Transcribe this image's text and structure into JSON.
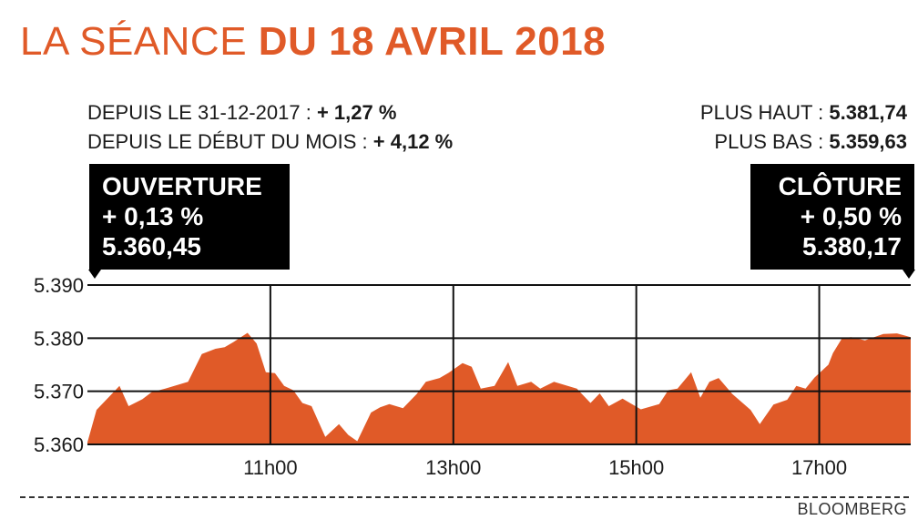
{
  "title": {
    "light": "LA SÉANCE",
    "bold": "DU 18 AVRIL 2018"
  },
  "stats_left": [
    {
      "label": "DEPUIS LE 31-12-2017 :",
      "value": "+ 1,27 %"
    },
    {
      "label": "DEPUIS LE DÉBUT DU MOIS :",
      "value": "+ 4,12 %"
    }
  ],
  "stats_right": [
    {
      "label": "PLUS HAUT :",
      "value": "5.381,74"
    },
    {
      "label": "PLUS BAS :",
      "value": "5.359,63"
    }
  ],
  "callouts": {
    "open": {
      "label": "OUVERTURE",
      "change": "+ 0,13 %",
      "value": "5.360,45"
    },
    "close": {
      "label": "CLÔTURE",
      "change": "+ 0,50 %",
      "value": "5.380,17"
    }
  },
  "source": "BLOOMBERG",
  "colors": {
    "area": "#e05a28",
    "title": "#e05a28",
    "callout_bg": "#000000"
  },
  "chart_data": {
    "type": "area",
    "ylim": [
      5360,
      5390
    ],
    "yticks": [
      5360,
      5370,
      5380,
      5390
    ],
    "ytick_labels": [
      "5.360",
      "5.370",
      "5.380",
      "5.390"
    ],
    "xlim": [
      9.0,
      18.0
    ],
    "xticks": [
      11,
      13,
      15,
      17
    ],
    "xtick_labels": [
      "11h00",
      "13h00",
      "15h00",
      "17h00"
    ],
    "grid": true,
    "series": [
      {
        "x": [
          9.0,
          9.1,
          9.35,
          9.45,
          9.6,
          9.7,
          9.85,
          10.1,
          10.25,
          10.4,
          10.5,
          10.6,
          10.75,
          10.85,
          10.95,
          11.05,
          11.15,
          11.25,
          11.35,
          11.45,
          11.6,
          11.75,
          11.85,
          11.95,
          12.1,
          12.2,
          12.3,
          12.45,
          12.6,
          12.7,
          12.85,
          12.95,
          13.1,
          13.2,
          13.3,
          13.45,
          13.6,
          13.7,
          13.85,
          13.95,
          14.1,
          14.25,
          14.35,
          14.5,
          14.6,
          14.7,
          14.85,
          15.05,
          15.25,
          15.35,
          15.45,
          15.6,
          15.7,
          15.8,
          15.9,
          16.05,
          16.25,
          16.35,
          16.5,
          16.65,
          16.75,
          16.85,
          16.95,
          17.1,
          17.15,
          17.25,
          17.35,
          17.5,
          17.7,
          17.85,
          18.0
        ],
        "values": [
          5360.4,
          5366.5,
          5371.0,
          5367.2,
          5368.5,
          5369.8,
          5370.5,
          5371.8,
          5377.0,
          5378.0,
          5378.3,
          5379.3,
          5381.0,
          5379.0,
          5373.6,
          5373.4,
          5371.0,
          5370.2,
          5367.8,
          5367.2,
          5361.4,
          5363.8,
          5361.8,
          5360.6,
          5366.0,
          5367.0,
          5367.6,
          5366.8,
          5369.5,
          5371.8,
          5372.5,
          5373.5,
          5375.3,
          5374.6,
          5370.5,
          5371.0,
          5375.5,
          5371.0,
          5371.8,
          5370.5,
          5371.8,
          5371.0,
          5370.5,
          5367.8,
          5369.6,
          5367.2,
          5368.6,
          5366.6,
          5367.6,
          5370.2,
          5370.5,
          5373.6,
          5368.8,
          5371.8,
          5372.5,
          5369.5,
          5366.5,
          5363.8,
          5367.5,
          5368.4,
          5371.0,
          5370.5,
          5372.6,
          5375.0,
          5377.2,
          5380.0,
          5380.2,
          5379.6,
          5380.8,
          5380.9,
          5380.2
        ]
      }
    ]
  }
}
